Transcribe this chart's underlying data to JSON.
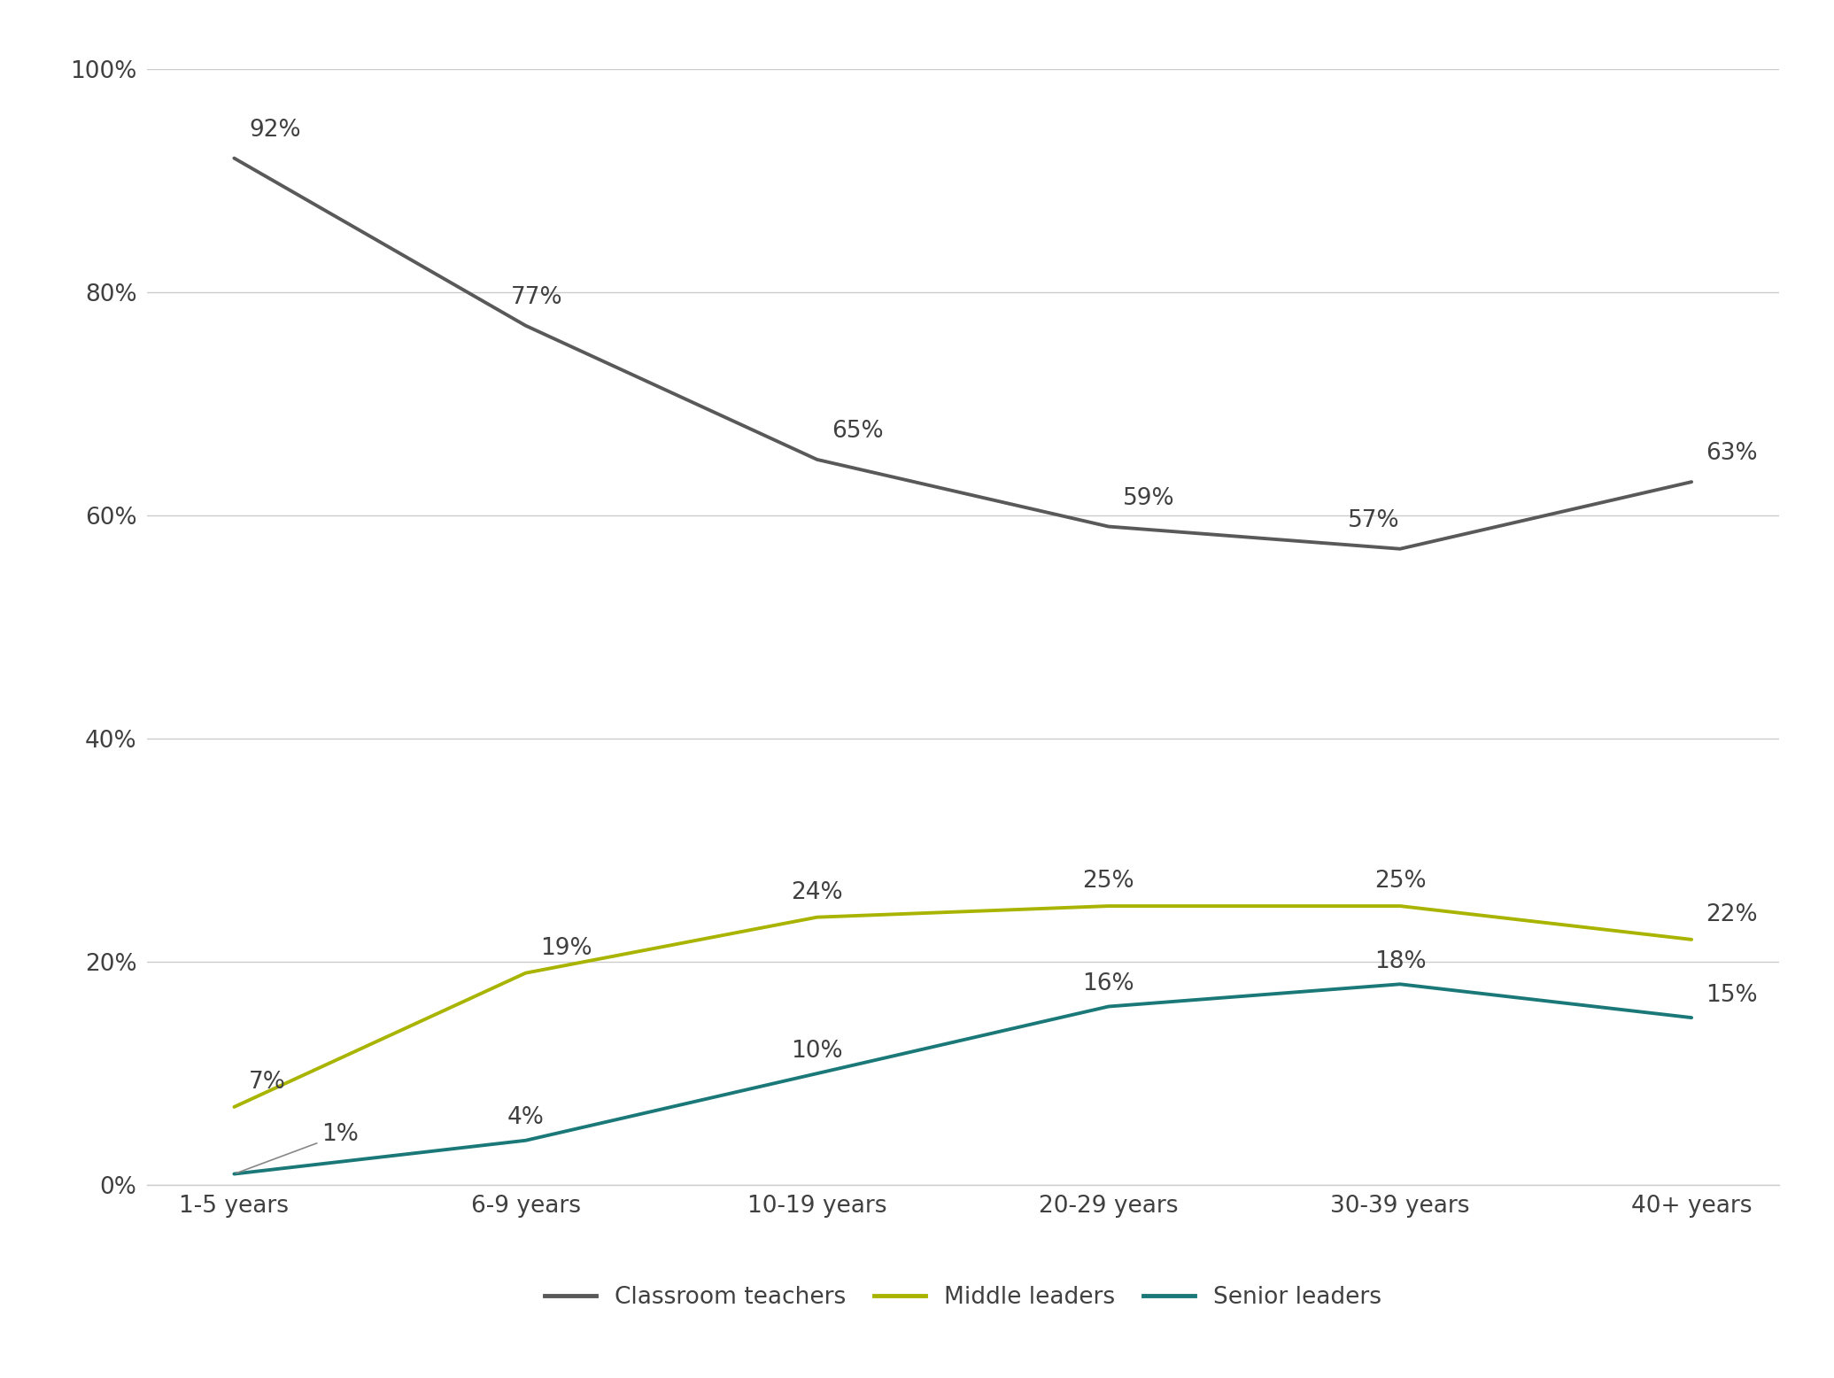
{
  "categories": [
    "1-5 years",
    "6-9 years",
    "10-19 years",
    "20-29 years",
    "30-39 years",
    "40+ years"
  ],
  "classroom_teachers": [
    92,
    77,
    65,
    59,
    57,
    63
  ],
  "middle_leaders": [
    7,
    19,
    24,
    25,
    25,
    22
  ],
  "senior_leaders": [
    1,
    4,
    10,
    16,
    18,
    15
  ],
  "classroom_color": "#595959",
  "middle_color": "#a8b400",
  "senior_color": "#1a7878",
  "annotation_color": "#404040",
  "grid_color": "#cccccc",
  "background_color": "#ffffff",
  "legend_labels": [
    "Classroom teachers",
    "Middle leaders",
    "Senior leaders"
  ],
  "ylim": [
    0,
    100
  ],
  "yticks": [
    0,
    20,
    40,
    60,
    80,
    100
  ],
  "ytick_labels": [
    "0%",
    "20%",
    "40%",
    "60%",
    "80%",
    "100%"
  ],
  "line_width": 2.8,
  "annotation_fontsize": 19,
  "tick_fontsize": 19,
  "legend_fontsize": 19,
  "ct_label_ha": [
    "left",
    "left",
    "left",
    "left",
    "left",
    "left"
  ],
  "ct_label_dx": [
    0.05,
    -0.05,
    0.05,
    0.05,
    -0.18,
    0.05
  ],
  "ct_label_dy": [
    1.5,
    1.5,
    1.5,
    1.5,
    1.5,
    1.5
  ],
  "ml_label_ha": [
    "left",
    "left",
    "center",
    "center",
    "center",
    "left"
  ],
  "ml_label_dx": [
    0.05,
    0.05,
    0.0,
    0.0,
    0.0,
    0.05
  ],
  "ml_label_dy": [
    1.2,
    1.2,
    1.2,
    1.2,
    1.2,
    1.2
  ],
  "sl_label_ha": [
    "left",
    "center",
    "center",
    "center",
    "center",
    "left"
  ],
  "sl_label_dx": [
    0.3,
    0.0,
    0.0,
    0.0,
    0.0,
    0.05
  ],
  "sl_label_dy": [
    2.5,
    1.0,
    1.0,
    1.0,
    1.0,
    1.0
  ],
  "sl_arrow": [
    true,
    false,
    false,
    false,
    false,
    false
  ]
}
